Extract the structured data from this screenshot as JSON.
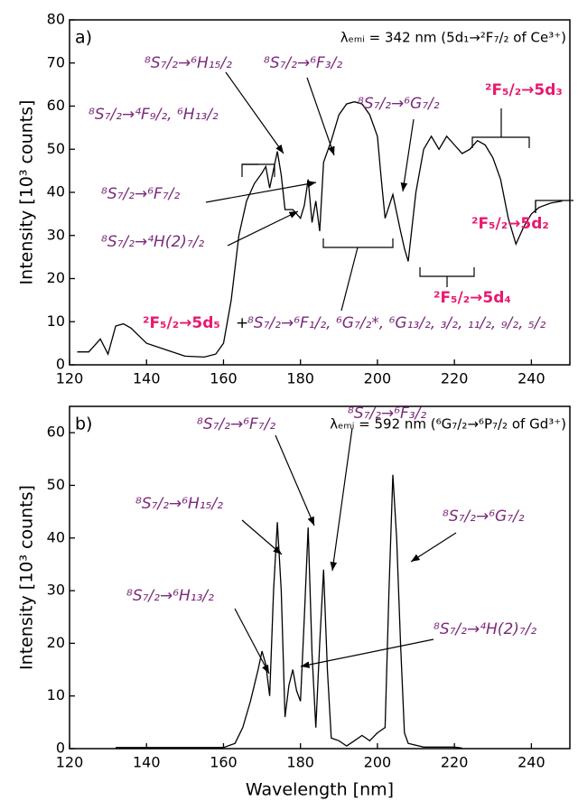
{
  "chart_data": [
    {
      "type": "line",
      "panel_label": "a)",
      "subtitle": "λₑₘᵢ = 342 nm (5d₁→²F₇/₂ of Ce³⁺)",
      "ylabel": "Intensity [10³ counts]",
      "x": [
        122,
        125,
        128,
        130,
        132,
        134,
        136,
        140,
        145,
        150,
        155,
        158,
        160,
        162,
        164,
        166,
        168,
        170,
        171,
        172,
        174,
        175,
        176,
        178,
        180,
        181,
        182,
        183,
        184,
        185,
        186,
        188,
        190,
        192,
        194,
        196,
        198,
        200,
        201,
        202,
        204,
        206,
        207,
        208,
        210,
        212,
        214,
        216,
        218,
        220,
        222,
        224,
        226,
        228,
        230,
        232,
        234,
        236,
        238,
        240,
        242,
        245,
        248
      ],
      "series": [
        {
          "color": "#000000",
          "values": [
            3,
            3,
            6,
            2.5,
            9,
            9.5,
            8.5,
            5,
            3.5,
            2,
            1.8,
            2.5,
            5,
            15,
            30,
            38,
            42,
            44.5,
            46,
            41,
            49.5,
            44,
            36,
            36,
            34,
            37,
            43,
            33,
            38,
            31,
            47,
            52,
            58,
            60.5,
            61,
            60.5,
            58,
            53,
            43,
            34,
            39.5,
            31,
            27,
            24,
            40,
            50,
            53,
            50,
            53,
            51,
            49,
            50,
            52,
            51,
            48,
            43,
            34,
            28,
            32,
            35,
            36.5,
            37.5,
            38
          ]
        }
      ],
      "xlim": [
        120,
        250
      ],
      "ylim": [
        0,
        80
      ],
      "xticks": [
        120,
        140,
        160,
        180,
        200,
        220,
        240
      ],
      "yticks": [
        0,
        10,
        20,
        30,
        40,
        50,
        60,
        70,
        80
      ],
      "annotations": [
        {
          "text": "⁸S₇/₂→⁶H₁₅/₂",
          "color": "#7b2a7b"
        },
        {
          "text": "⁸S₇/₂→⁴F₉/₂, ⁶H₁₃/₂",
          "color": "#7b2a7b"
        },
        {
          "text": "⁸S₇/₂→⁶F₇/₂",
          "color": "#7b2a7b"
        },
        {
          "text": "⁸S₇/₂→⁴H(2)₇/₂",
          "color": "#7b2a7b"
        },
        {
          "text": "⁸S₇/₂→⁶F₃/₂",
          "color": "#7b2a7b"
        },
        {
          "text": "⁸S₇/₂→⁶G₇/₂",
          "color": "#7b2a7b"
        },
        {
          "text": "²F₅/₂→5d₃",
          "color": "#e8196e"
        },
        {
          "text": "²F₅/₂→5d₂",
          "color": "#e8196e"
        },
        {
          "text": "²F₅/₂→5d₄",
          "color": "#e8196e"
        },
        {
          "text": "²F₅/₂→5d₅",
          "color": "#e8196e"
        },
        {
          "text": "+",
          "color": "#000000"
        },
        {
          "text": "⁸S₇/₂→⁶F₁/₂, ⁶G₇/₂*, ⁶G₁₃/₂, ₃/₂, ₁₁/₂, ₉/₂, ₅/₂",
          "color": "#7b2a7b"
        }
      ]
    },
    {
      "type": "line",
      "panel_label": "b)",
      "subtitle": "λₑₘᵢ = 592 nm (⁶G₇/₂→⁶P₇/₂ of Gd³⁺)",
      "ylabel": "Intensity [10³ counts]",
      "xlabel": "Wavelength [nm]",
      "x": [
        132,
        150,
        160,
        163,
        165,
        167,
        169,
        170,
        171,
        172,
        173,
        174,
        175,
        176,
        177,
        178,
        179,
        180,
        181,
        182,
        183,
        184,
        185,
        186,
        187,
        188,
        190,
        192,
        194,
        196,
        198,
        200,
        202,
        203,
        204,
        205,
        206,
        207,
        208,
        212,
        220,
        222
      ],
      "series": [
        {
          "color": "#000000",
          "values": [
            0.2,
            0.2,
            0.2,
            1,
            4,
            9,
            15,
            18.5,
            16,
            10,
            30,
            43,
            30,
            6,
            12,
            15,
            11,
            9,
            25,
            42,
            18,
            4,
            20,
            34,
            15,
            2,
            1.5,
            0.5,
            1.5,
            2.5,
            1.5,
            3,
            4,
            30,
            52,
            40,
            20,
            3,
            1,
            0.3,
            0.3,
            0.1
          ]
        }
      ],
      "xlim": [
        120,
        250
      ],
      "ylim": [
        0,
        65
      ],
      "xticks": [
        120,
        140,
        160,
        180,
        200,
        220,
        240
      ],
      "yticks": [
        0,
        10,
        20,
        30,
        40,
        50,
        60
      ],
      "annotations": [
        {
          "text": "⁸S₇/₂→⁶F₇/₂",
          "color": "#7b2a7b"
        },
        {
          "text": "⁸S₇/₂→⁶F₃/₂",
          "color": "#7b2a7b"
        },
        {
          "text": "⁸S₇/₂→⁶H₁₅/₂",
          "color": "#7b2a7b"
        },
        {
          "text": "⁸S₇/₂→⁶G₇/₂",
          "color": "#7b2a7b"
        },
        {
          "text": "⁸S₇/₂→⁶H₁₃/₂",
          "color": "#7b2a7b"
        },
        {
          "text": "⁸S₇/₂→⁴H(2)₇/₂",
          "color": "#7b2a7b"
        }
      ]
    }
  ]
}
